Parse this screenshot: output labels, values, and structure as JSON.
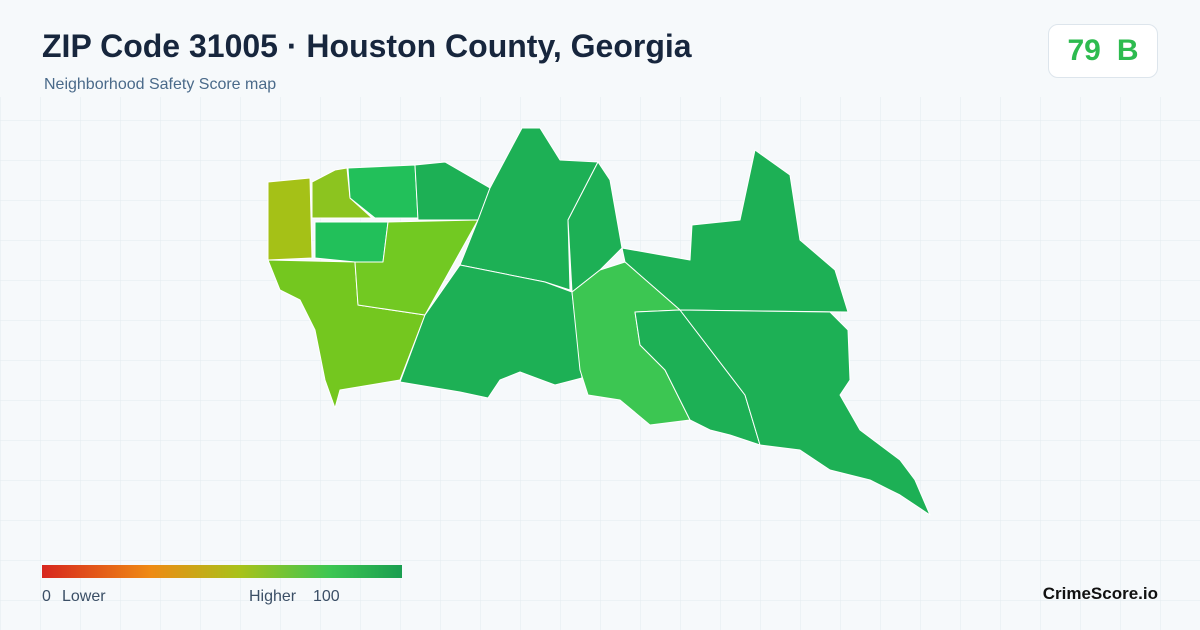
{
  "header": {
    "title": "ZIP Code 31005 · Houston County, Georgia",
    "subtitle": "Neighborhood Safety Score map"
  },
  "score": {
    "value": "79",
    "grade": "B"
  },
  "legend": {
    "min": "0",
    "min_label": "Lower",
    "max_label": "Higher",
    "max": "100"
  },
  "brand": "CrimeScore.io"
}
